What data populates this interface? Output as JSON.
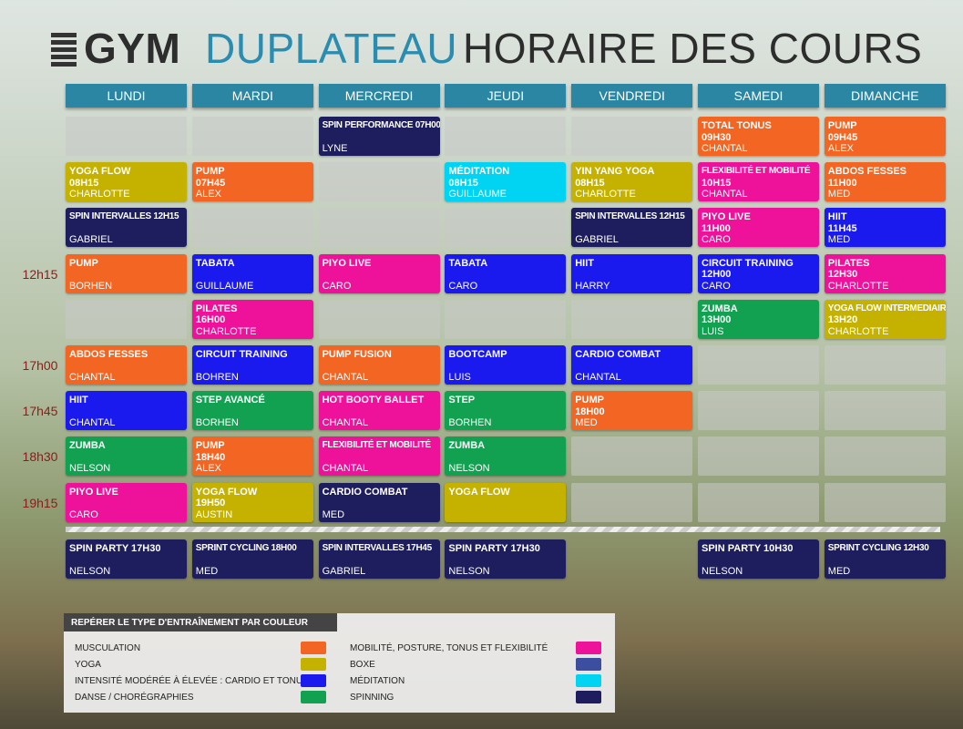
{
  "header": {
    "brand_main": "GYM",
    "brand_accent": "DUPLATEAU",
    "title": "HORAIRE DES COURS"
  },
  "days": [
    "LUNDI",
    "MARDI",
    "MERCREDI",
    "JEUDI",
    "VENDREDI",
    "SAMEDI",
    "DIMANCHE"
  ],
  "schedule": {
    "rows": [
      {
        "time": null,
        "cells": [
          null,
          null,
          {
            "lines": [
              "SPIN PERFORMANCE 07H00",
              "LYNE"
            ],
            "color": "#1e1e5e"
          },
          null,
          null,
          {
            "lines": [
              "TOTAL TONUS",
              "09H30",
              "CHANTAL"
            ],
            "color": "#f26522"
          },
          {
            "lines": [
              "PUMP",
              "09H45",
              "ALEX"
            ],
            "color": "#f26522"
          }
        ]
      },
      {
        "time": null,
        "cells": [
          {
            "lines": [
              "YOGA FLOW",
              "08H15",
              "CHARLOTTE"
            ],
            "color": "#c5b200"
          },
          {
            "lines": [
              "PUMP",
              "07H45",
              "ALEX"
            ],
            "color": "#f26522"
          },
          null,
          {
            "lines": [
              "MÉDITATION",
              "08H15",
              "GUILLAUME"
            ],
            "color": "#00d4f2"
          },
          {
            "lines": [
              "YIN YANG YOGA",
              "08H15",
              "CHARLOTTE"
            ],
            "color": "#c5b200"
          },
          {
            "lines": [
              "FLEXIBILITÉ ET MOBILITÉ",
              "10H15",
              "CHANTAL"
            ],
            "color": "#ee1199"
          },
          {
            "lines": [
              "ABDOS FESSES",
              "11H00",
              "MED"
            ],
            "color": "#f26522"
          }
        ]
      },
      {
        "time": null,
        "cells": [
          {
            "lines": [
              "SPIN INTERVALLES 12H15",
              "GABRIEL"
            ],
            "color": "#1e1e5e"
          },
          null,
          null,
          null,
          {
            "lines": [
              "SPIN INTERVALLES 12H15",
              "GABRIEL"
            ],
            "color": "#1e1e5e"
          },
          {
            "lines": [
              "PIYO LIVE",
              "11H00",
              "CARO"
            ],
            "color": "#ee1199"
          },
          {
            "lines": [
              "HIIT",
              "11H45",
              "MED"
            ],
            "color": "#1a1aef"
          }
        ]
      },
      {
        "time": "12h15",
        "cells": [
          {
            "lines": [
              "PUMP",
              "BORHEN"
            ],
            "color": "#f26522"
          },
          {
            "lines": [
              "TABATA",
              "GUILLAUME"
            ],
            "color": "#1a1aef"
          },
          {
            "lines": [
              "PIYO LIVE",
              "CARO"
            ],
            "color": "#ee1199"
          },
          {
            "lines": [
              "TABATA",
              "CARO"
            ],
            "color": "#1a1aef"
          },
          {
            "lines": [
              "HIIT",
              "HARRY"
            ],
            "color": "#1a1aef"
          },
          {
            "lines": [
              "CIRCUIT TRAINING",
              "12H00",
              "CARO"
            ],
            "color": "#1a1aef"
          },
          {
            "lines": [
              "PILATES",
              "12H30",
              "CHARLOTTE"
            ],
            "color": "#ee1199"
          }
        ]
      },
      {
        "time": null,
        "cells": [
          null,
          {
            "lines": [
              "PILATES",
              "16H00",
              "CHARLOTTE"
            ],
            "color": "#ee1199"
          },
          null,
          null,
          null,
          {
            "lines": [
              "ZUMBA",
              "13H00",
              "LUIS"
            ],
            "color": "#12a150"
          },
          {
            "lines": [
              "YOGA FLOW INTERMEDIAIRE",
              "13H20",
              "CHARLOTTE"
            ],
            "color": "#c5b200"
          }
        ]
      },
      {
        "time": "17h00",
        "cells": [
          {
            "lines": [
              "ABDOS FESSES",
              "CHANTAL"
            ],
            "color": "#f26522"
          },
          {
            "lines": [
              "CIRCUIT TRAINING",
              "BOHREN"
            ],
            "color": "#1a1aef"
          },
          {
            "lines": [
              "PUMP FUSION",
              "CHANTAL"
            ],
            "color": "#f26522"
          },
          {
            "lines": [
              "BOOTCAMP",
              "LUIS"
            ],
            "color": "#1a1aef"
          },
          {
            "lines": [
              "CARDIO COMBAT",
              "CHANTAL"
            ],
            "color": "#1a1aef"
          },
          null,
          null
        ]
      },
      {
        "time": "17h45",
        "cells": [
          {
            "lines": [
              "HIIT",
              "CHANTAL"
            ],
            "color": "#1a1aef"
          },
          {
            "lines": [
              "STEP AVANCÉ",
              "BORHEN"
            ],
            "color": "#12a150"
          },
          {
            "lines": [
              "HOT BOOTY BALLET",
              "CHANTAL"
            ],
            "color": "#ee1199"
          },
          {
            "lines": [
              "STEP",
              "BORHEN"
            ],
            "color": "#12a150"
          },
          {
            "lines": [
              "PUMP",
              "18H00",
              "MED"
            ],
            "color": "#f26522"
          },
          null,
          null
        ]
      },
      {
        "time": "18h30",
        "cells": [
          {
            "lines": [
              "ZUMBA",
              "NELSON"
            ],
            "color": "#12a150"
          },
          {
            "lines": [
              "PUMP",
              "18H40",
              "ALEX"
            ],
            "color": "#f26522"
          },
          {
            "lines": [
              "FLEXIBILITÉ ET MOBILITÉ",
              "CHANTAL"
            ],
            "color": "#ee1199"
          },
          {
            "lines": [
              "ZUMBA",
              "NELSON"
            ],
            "color": "#12a150"
          },
          null,
          null,
          null
        ]
      },
      {
        "time": "19h15",
        "cells": [
          {
            "lines": [
              "PIYO LIVE",
              "CARO"
            ],
            "color": "#ee1199"
          },
          {
            "lines": [
              "YOGA FLOW",
              "19H50",
              "AUSTIN"
            ],
            "color": "#c5b200"
          },
          {
            "lines": [
              "CARDIO COMBAT",
              "MED"
            ],
            "color": "#1e1e5e"
          },
          {
            "lines": [
              "YOGA FLOW"
            ],
            "color": "#c5b200"
          },
          null,
          null,
          null
        ]
      }
    ],
    "spinning_row": {
      "cells": [
        {
          "lines": [
            "SPIN PARTY 17H30",
            "NELSON"
          ],
          "color": "#1e1e5e"
        },
        {
          "lines": [
            "SPRINT CYCLING 18H00",
            "MED"
          ],
          "color": "#1e1e5e"
        },
        {
          "lines": [
            "SPIN INTERVALLES 17H45",
            "GABRIEL"
          ],
          "color": "#1e1e5e"
        },
        {
          "lines": [
            "SPIN PARTY 17H30",
            "NELSON"
          ],
          "color": "#1e1e5e"
        },
        null,
        {
          "lines": [
            "SPIN PARTY 10H30",
            "NELSON"
          ],
          "color": "#1e1e5e"
        },
        {
          "lines": [
            "SPRINT CYCLING 12H30",
            "MED"
          ],
          "color": "#1e1e5e"
        }
      ]
    }
  },
  "legend": {
    "title": "REPÉRER LE TYPE D'ENTRAÎNEMENT PAR COULEUR",
    "items": [
      {
        "label": "MUSCULATION",
        "color": "#f26522"
      },
      {
        "label": "YOGA",
        "color": "#c5b200"
      },
      {
        "label": "INTENSITÉ MODÉRÉE À ÉLEVÉE : CARDIO ET TONUS",
        "color": "#1a1aef"
      },
      {
        "label": "DANSE / CHORÉGRAPHIES",
        "color": "#12a150"
      },
      {
        "label": "MOBILITÉ, POSTURE, TONUS ET FLEXIBILITÉ",
        "color": "#ee1199"
      },
      {
        "label": "BOXE",
        "color": "#3b4ea0"
      },
      {
        "label": "MÉDITATION",
        "color": "#00d4f2"
      },
      {
        "label": "SPINNING",
        "color": "#1e1e5e"
      }
    ]
  }
}
